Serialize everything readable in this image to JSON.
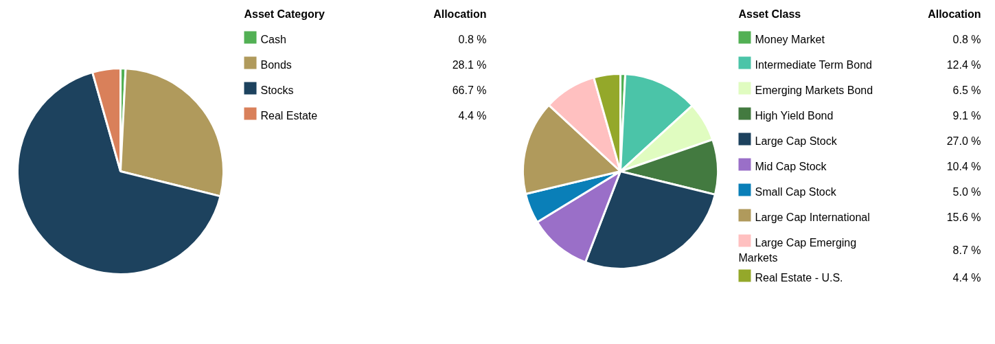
{
  "chart_data": [
    {
      "type": "pie",
      "legend_title": "Asset Category",
      "annotations": [
        "Allocation"
      ],
      "legend": "right",
      "categories": [
        "Cash",
        "Bonds",
        "Stocks",
        "Real Estate"
      ],
      "values": [
        0.8,
        28.1,
        66.7,
        4.4
      ],
      "value_labels": [
        "0.8 %",
        "28.1 %",
        "66.7 %",
        "4.4 %"
      ],
      "colors": [
        "#52b054",
        "#b09a5c",
        "#1d425e",
        "#d9805a"
      ]
    },
    {
      "type": "pie",
      "legend_title": "Asset Class",
      "annotations": [
        "Allocation"
      ],
      "legend": "right",
      "categories": [
        "Money Market",
        "Intermediate Term Bond",
        "Emerging Markets Bond",
        "High Yield Bond",
        "Large Cap Stock",
        "Mid Cap Stock",
        "Small Cap Stock",
        "Large Cap International",
        "Large Cap Emerging Markets",
        "Real Estate - U.S."
      ],
      "values": [
        0.8,
        12.4,
        6.5,
        9.1,
        27.0,
        10.4,
        5.0,
        15.6,
        8.7,
        4.4
      ],
      "value_labels": [
        "0.8 %",
        "12.4 %",
        "6.5 %",
        "9.1 %",
        "27.0 %",
        "10.4 %",
        "5.0 %",
        "15.6 %",
        "8.7 %",
        "4.4 %"
      ],
      "colors": [
        "#52b054",
        "#4bc4a8",
        "#e0fcc0",
        "#437a40",
        "#1d425e",
        "#9a6fc8",
        "#0a7fb8",
        "#b09a5c",
        "#ffc0c0",
        "#94a82a"
      ]
    }
  ]
}
